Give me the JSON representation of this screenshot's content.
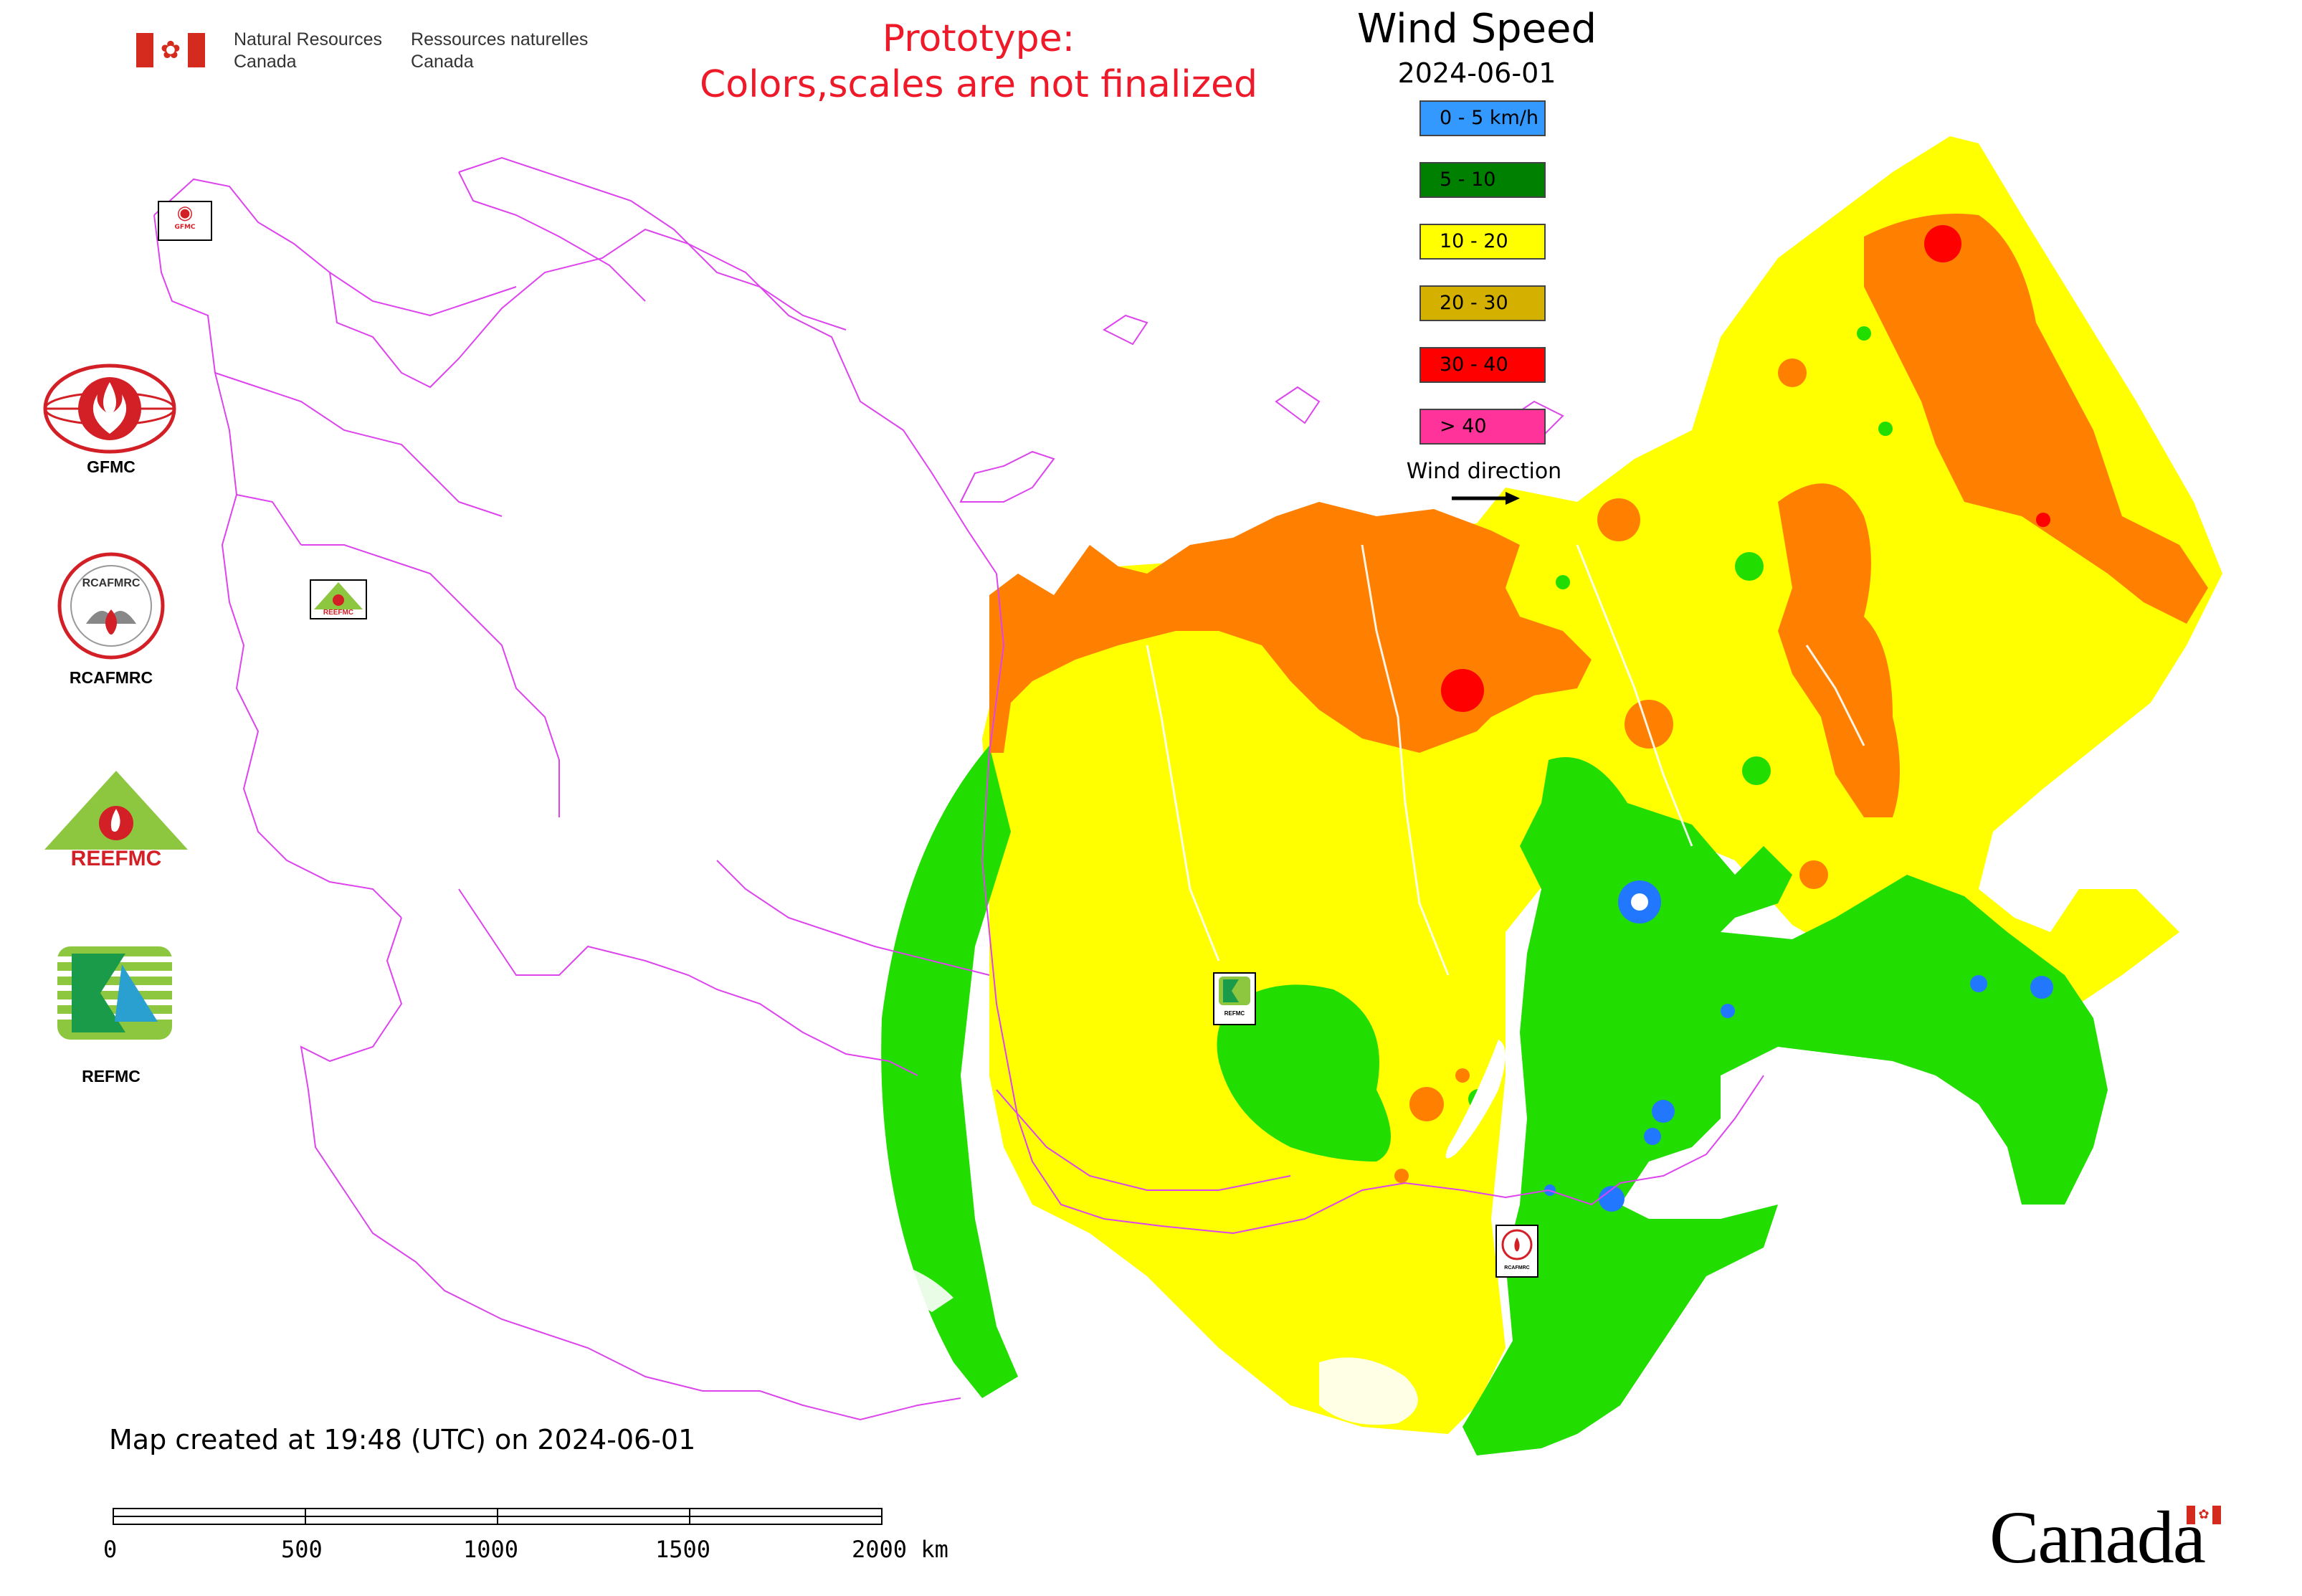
{
  "header": {
    "dept_en_line1": "Natural Resources",
    "dept_en_line2": "Canada",
    "dept_fr_line1": "Ressources naturelles",
    "dept_fr_line2": "Canada",
    "flag_icon": "canada-flag-icon"
  },
  "prototype_notice": {
    "line1": "Prototype:",
    "line2": "Colors,scales are not finalized",
    "color": "#ee1a2a"
  },
  "legend": {
    "title": "Wind Speed",
    "date": "2024-06-01",
    "items": [
      {
        "label": "0 - 5 km/h",
        "color": "#3399ff"
      },
      {
        "label": "5 - 10",
        "color": "#008000"
      },
      {
        "label": "10 - 20",
        "color": "#ffff00"
      },
      {
        "label": "20 - 30",
        "color": "#d4b000"
      },
      {
        "label": "30 - 40",
        "color": "#ff0000"
      },
      {
        "label": "> 40",
        "color": "#ff3399"
      }
    ],
    "wind_direction_label": "Wind direction"
  },
  "map_colors": {
    "band_5_10": "#22dd00",
    "band_10_20": "#ffff00",
    "band_20_30": "#ff8000",
    "band_30_40": "#ff0000",
    "calm_0_5": "#2277ff",
    "borders": "#dd44ee"
  },
  "logos": {
    "gfmc": "GFMC",
    "rcafmrc": "RCAFMRC",
    "reefmc": "REEFMC",
    "refmc": "REFMC",
    "reefmc_logo_text": "REEFMC",
    "rcafmrc_logo_text": "RCAFMRC"
  },
  "map_markers": {
    "gfmc_small": "GFMC",
    "reefmc_small": "REEFMC",
    "refmc_small": "REFMC",
    "rcafmrc_small": "RCAFMRC"
  },
  "footer": {
    "created": "Map created at 19:48 (UTC) on 2024-06-01",
    "scale_labels": [
      "0",
      "500",
      "1000",
      "1500",
      "2000 km"
    ],
    "wordmark": "Canada"
  }
}
